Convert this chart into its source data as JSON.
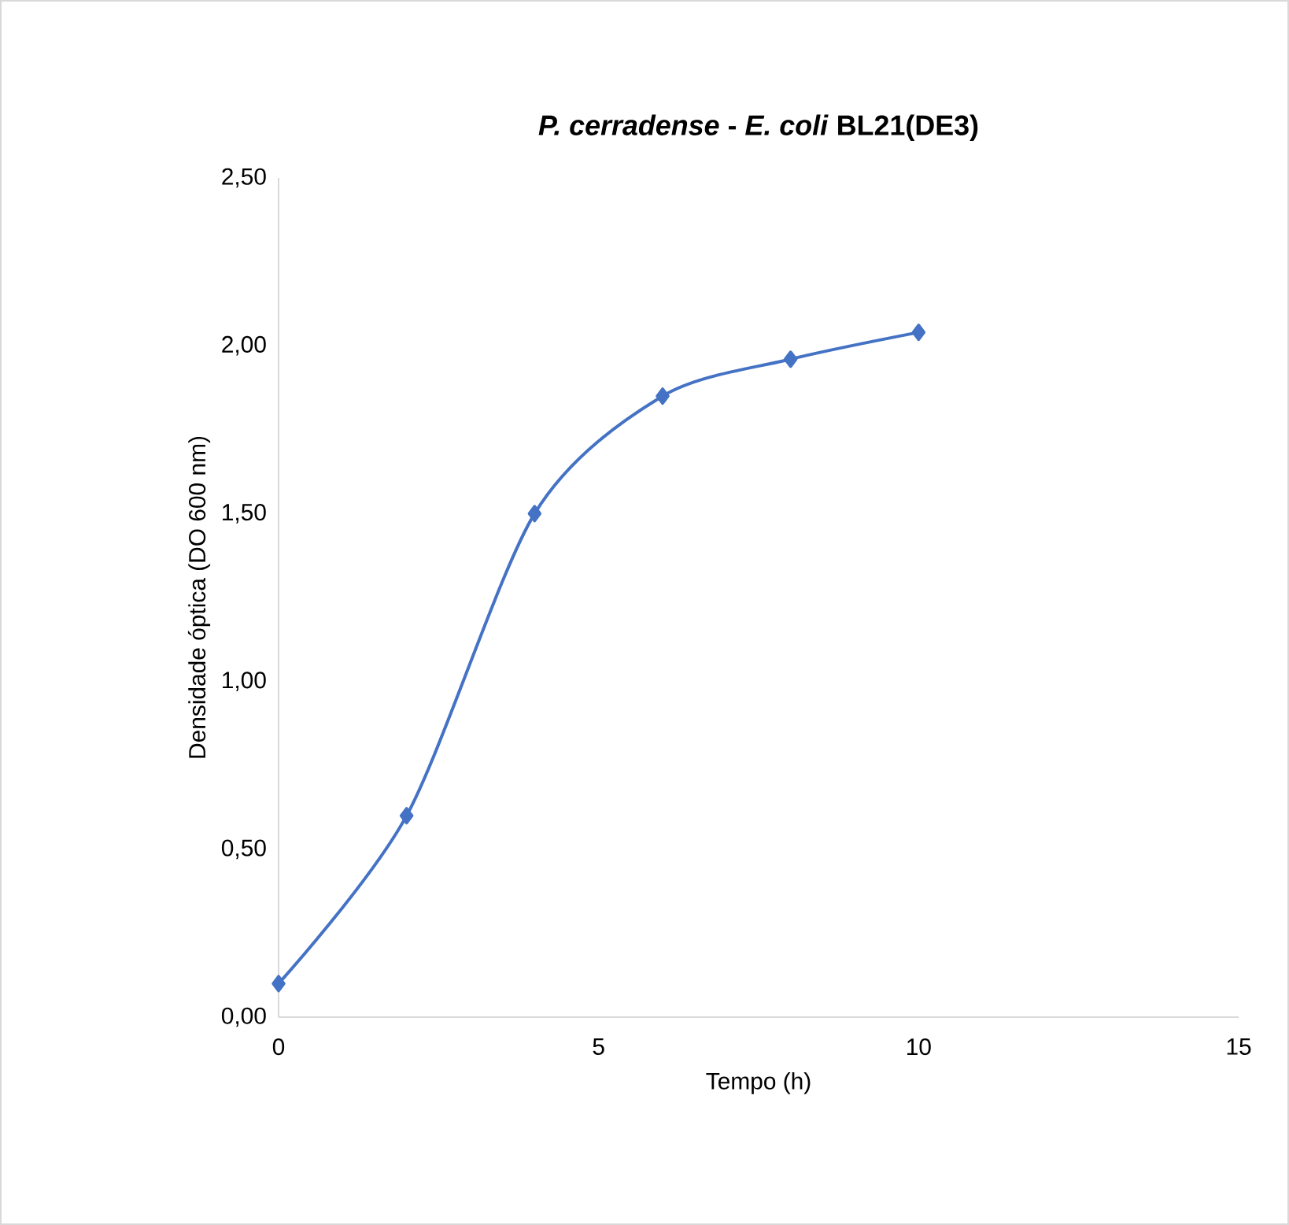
{
  "chart_data": {
    "type": "line",
    "title": "*P. cerradense* - *E. coli* BL21(DE3)",
    "xlabel": "Tempo (h)",
    "ylabel": "Densidade óptica (DO 600 nm)",
    "x": [
      0,
      2,
      4,
      6,
      8,
      10
    ],
    "series": [
      {
        "color": "#4472c4",
        "values": [
          0.1,
          0.6,
          1.5,
          1.85,
          1.96,
          2.04
        ]
      }
    ],
    "xlim": [
      0,
      15
    ],
    "xticks": [
      0,
      5,
      10,
      15
    ],
    "ylim": [
      0,
      2.5
    ],
    "yticks": [
      {
        "value": 0,
        "label": "0,00"
      },
      {
        "value": 0.5,
        "label": "0,50"
      },
      {
        "value": 1,
        "label": "1,00"
      },
      {
        "value": 1.5,
        "label": "1,50"
      },
      {
        "value": 2,
        "label": "2,00"
      },
      {
        "value": 2.5,
        "label": "2,50"
      }
    ],
    "marker": "diamond",
    "line_style": "solid",
    "grid": false
  }
}
